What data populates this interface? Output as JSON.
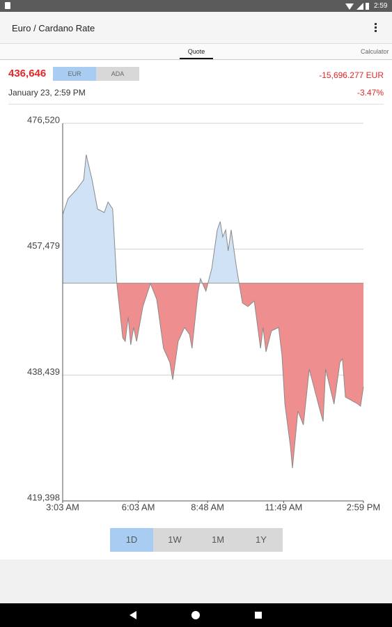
{
  "status_bar": {
    "time": "2:59"
  },
  "app_bar": {
    "title": "Euro / Cardano Rate"
  },
  "tabs": [
    "Quote",
    "Calculator"
  ],
  "quote": {
    "price": "436,646",
    "currencies": [
      "EUR",
      "ADA"
    ],
    "change": "-15,696.277 EUR",
    "date": "January 23, 2:59 PM",
    "change_percent": "-3.47%"
  },
  "range_buttons": [
    "1D",
    "1W",
    "1M",
    "1Y"
  ],
  "chart_data": {
    "type": "area",
    "x": [
      183,
      196,
      216,
      233,
      239,
      253,
      266,
      282,
      291,
      302,
      312,
      326,
      332,
      339,
      345,
      352,
      359,
      374,
      392,
      407,
      423,
      438,
      445,
      458,
      473,
      485,
      491,
      505,
      511,
      524,
      538,
      551,
      558,
      564,
      571,
      577,
      584,
      597,
      611,
      624,
      639,
      654,
      660,
      667,
      680,
      697,
      705,
      712,
      725,
      730,
      743,
      756,
      770,
      783,
      796,
      803,
      809,
      829,
      843,
      849,
      856,
      871,
      886,
      892,
      899
    ],
    "series": [
      {
        "color": "#8a8a8a",
        "values": [
          462714,
          465138,
          466508,
          467983,
          471777,
          467983,
          463557,
          463030,
          464611,
          463557,
          452280,
          444060,
          443533,
          447222,
          443006,
          445641,
          443533,
          448802,
          452280,
          449856,
          442479,
          440371,
          437736,
          443533,
          445641,
          444587,
          442479,
          450910,
          453018,
          451121,
          454599,
          460395,
          461660,
          459341,
          460395,
          457234,
          460395,
          454599,
          449329,
          448802,
          449646,
          442479,
          445641,
          441952,
          445114,
          445641,
          441425,
          434048,
          427724,
          424352,
          432994,
          430886,
          439317,
          436156,
          432994,
          431413,
          439317,
          434048,
          440371,
          440898,
          435102,
          434575,
          434048,
          433732,
          436646
        ]
      }
    ],
    "baseline": 452342,
    "fill_above": "#cfe2f6",
    "fill_below": "#ef8e8e",
    "xlim": [
      183,
      899
    ],
    "xticks": [
      {
        "value": 183,
        "label": "3:03 AM"
      },
      {
        "value": 363,
        "label": "6:03 AM"
      },
      {
        "value": 528,
        "label": "8:48 AM"
      },
      {
        "value": 709,
        "label": "11:49 AM"
      },
      {
        "value": 899,
        "label": "2:59 PM"
      }
    ],
    "ylim": [
      419398,
      476520
    ],
    "yticks": [
      {
        "value": 419398,
        "label": "419,398"
      },
      {
        "value": 438439,
        "label": "438,439"
      },
      {
        "value": 457479,
        "label": "457,479"
      },
      {
        "value": 476520,
        "label": "476,520"
      }
    ],
    "grid": true
  }
}
